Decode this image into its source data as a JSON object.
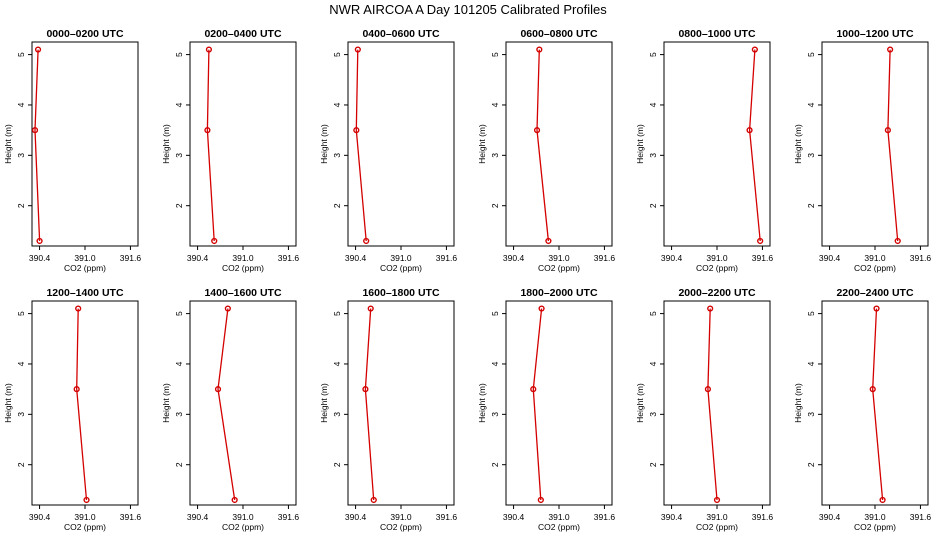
{
  "figure": {
    "title": "NWR AIRCOA A  Day 101205  Calibrated Profiles"
  },
  "colors": {
    "line": "#d40000",
    "marker": "#d40000",
    "frame": "#000000"
  },
  "chart_data": [
    {
      "type": "line",
      "title": "0000–0200 UTC",
      "xlabel": "CO2 (ppm)",
      "ylabel": "Height (m)",
      "xlim": [
        390.3,
        391.7
      ],
      "ylim": [
        1.2,
        5.25
      ],
      "xticks": [
        390.4,
        391.0,
        391.6
      ],
      "xtick_labels": [
        "390.4",
        "391.0",
        "391.6"
      ],
      "yticks": [
        2,
        3,
        4,
        5
      ],
      "ytick_labels": [
        "2",
        "3",
        "4",
        "5"
      ],
      "series": [
        {
          "x": [
            390.38,
            390.34,
            390.4
          ],
          "y": [
            5.1,
            3.5,
            1.3
          ]
        }
      ]
    },
    {
      "type": "line",
      "title": "0200–0400 UTC",
      "xlabel": "CO2 (ppm)",
      "ylabel": "Height (m)",
      "xlim": [
        390.3,
        391.7
      ],
      "ylim": [
        1.2,
        5.25
      ],
      "xticks": [
        390.4,
        391.0,
        391.6
      ],
      "xtick_labels": [
        "390.4",
        "391.0",
        "391.6"
      ],
      "yticks": [
        2,
        3,
        4,
        5
      ],
      "ytick_labels": [
        "2",
        "3",
        "4",
        "5"
      ],
      "series": [
        {
          "x": [
            390.55,
            390.53,
            390.62
          ],
          "y": [
            5.1,
            3.5,
            1.3
          ]
        }
      ]
    },
    {
      "type": "line",
      "title": "0400–0600 UTC",
      "xlabel": "CO2 (ppm)",
      "ylabel": "Height (m)",
      "xlim": [
        390.3,
        391.7
      ],
      "ylim": [
        1.2,
        5.25
      ],
      "xticks": [
        390.4,
        391.0,
        391.6
      ],
      "xtick_labels": [
        "390.4",
        "391.0",
        "391.6"
      ],
      "yticks": [
        2,
        3,
        4,
        5
      ],
      "ytick_labels": [
        "2",
        "3",
        "4",
        "5"
      ],
      "series": [
        {
          "x": [
            390.43,
            390.41,
            390.54
          ],
          "y": [
            5.1,
            3.5,
            1.3
          ]
        }
      ]
    },
    {
      "type": "line",
      "title": "0600–0800 UTC",
      "xlabel": "CO2 (ppm)",
      "ylabel": "Height (m)",
      "xlim": [
        390.3,
        391.7
      ],
      "ylim": [
        1.2,
        5.25
      ],
      "xticks": [
        390.4,
        391.0,
        391.6
      ],
      "xtick_labels": [
        "390.4",
        "391.0",
        "391.6"
      ],
      "yticks": [
        2,
        3,
        4,
        5
      ],
      "ytick_labels": [
        "2",
        "3",
        "4",
        "5"
      ],
      "series": [
        {
          "x": [
            390.74,
            390.71,
            390.86
          ],
          "y": [
            5.1,
            3.5,
            1.3
          ]
        }
      ]
    },
    {
      "type": "line",
      "title": "0800–1000 UTC",
      "xlabel": "CO2 (ppm)",
      "ylabel": "Height (m)",
      "xlim": [
        390.3,
        391.7
      ],
      "ylim": [
        1.2,
        5.25
      ],
      "xticks": [
        390.4,
        391.0,
        391.6
      ],
      "xtick_labels": [
        "390.4",
        "391.0",
        "391.6"
      ],
      "yticks": [
        2,
        3,
        4,
        5
      ],
      "ytick_labels": [
        "2",
        "3",
        "4",
        "5"
      ],
      "series": [
        {
          "x": [
            391.5,
            391.43,
            391.57
          ],
          "y": [
            5.1,
            3.5,
            1.3
          ]
        }
      ]
    },
    {
      "type": "line",
      "title": "1000–1200 UTC",
      "xlabel": "CO2 (ppm)",
      "ylabel": "Height (m)",
      "xlim": [
        390.3,
        391.7
      ],
      "ylim": [
        1.2,
        5.25
      ],
      "xticks": [
        390.4,
        391.0,
        391.6
      ],
      "xtick_labels": [
        "390.4",
        "391.0",
        "391.6"
      ],
      "yticks": [
        2,
        3,
        4,
        5
      ],
      "ytick_labels": [
        "2",
        "3",
        "4",
        "5"
      ],
      "series": [
        {
          "x": [
            391.2,
            391.17,
            391.3
          ],
          "y": [
            5.1,
            3.5,
            1.3
          ]
        }
      ]
    },
    {
      "type": "line",
      "title": "1200–1400 UTC",
      "xlabel": "CO2 (ppm)",
      "ylabel": "Height (m)",
      "xlim": [
        390.3,
        391.7
      ],
      "ylim": [
        1.2,
        5.25
      ],
      "xticks": [
        390.4,
        391.0,
        391.6
      ],
      "xtick_labels": [
        "390.4",
        "391.0",
        "391.6"
      ],
      "yticks": [
        2,
        3,
        4,
        5
      ],
      "ytick_labels": [
        "2",
        "3",
        "4",
        "5"
      ],
      "series": [
        {
          "x": [
            390.91,
            390.89,
            391.02
          ],
          "y": [
            5.1,
            3.5,
            1.3
          ]
        }
      ]
    },
    {
      "type": "line",
      "title": "1400–1600 UTC",
      "xlabel": "CO2 (ppm)",
      "ylabel": "Height (m)",
      "xlim": [
        390.3,
        391.7
      ],
      "ylim": [
        1.2,
        5.25
      ],
      "xticks": [
        390.4,
        391.0,
        391.6
      ],
      "xtick_labels": [
        "390.4",
        "391.0",
        "391.6"
      ],
      "yticks": [
        2,
        3,
        4,
        5
      ],
      "ytick_labels": [
        "2",
        "3",
        "4",
        "5"
      ],
      "series": [
        {
          "x": [
            390.8,
            390.67,
            390.89
          ],
          "y": [
            5.1,
            3.5,
            1.3
          ]
        }
      ]
    },
    {
      "type": "line",
      "title": "1600–1800 UTC",
      "xlabel": "CO2 (ppm)",
      "ylabel": "Height (m)",
      "xlim": [
        390.3,
        391.7
      ],
      "ylim": [
        1.2,
        5.25
      ],
      "xticks": [
        390.4,
        391.0,
        391.6
      ],
      "xtick_labels": [
        "390.4",
        "391.0",
        "391.6"
      ],
      "yticks": [
        2,
        3,
        4,
        5
      ],
      "ytick_labels": [
        "2",
        "3",
        "4",
        "5"
      ],
      "series": [
        {
          "x": [
            390.6,
            390.53,
            390.64
          ],
          "y": [
            5.1,
            3.5,
            1.3
          ]
        }
      ]
    },
    {
      "type": "line",
      "title": "1800–2000 UTC",
      "xlabel": "CO2 (ppm)",
      "ylabel": "Height (m)",
      "xlim": [
        390.3,
        391.7
      ],
      "ylim": [
        1.2,
        5.25
      ],
      "xticks": [
        390.4,
        391.0,
        391.6
      ],
      "xtick_labels": [
        "390.4",
        "391.0",
        "391.6"
      ],
      "yticks": [
        2,
        3,
        4,
        5
      ],
      "ytick_labels": [
        "2",
        "3",
        "4",
        "5"
      ],
      "series": [
        {
          "x": [
            390.77,
            390.66,
            390.76
          ],
          "y": [
            5.1,
            3.5,
            1.3
          ]
        }
      ]
    },
    {
      "type": "line",
      "title": "2000–2200 UTC",
      "xlabel": "CO2 (ppm)",
      "ylabel": "Height (m)",
      "xlim": [
        390.3,
        391.7
      ],
      "ylim": [
        1.2,
        5.25
      ],
      "xticks": [
        390.4,
        391.0,
        391.6
      ],
      "xtick_labels": [
        "390.4",
        "391.0",
        "391.6"
      ],
      "yticks": [
        2,
        3,
        4,
        5
      ],
      "ytick_labels": [
        "2",
        "3",
        "4",
        "5"
      ],
      "series": [
        {
          "x": [
            390.91,
            390.88,
            391.0
          ],
          "y": [
            5.1,
            3.5,
            1.3
          ]
        }
      ]
    },
    {
      "type": "line",
      "title": "2200–2400 UTC",
      "xlabel": "CO2 (ppm)",
      "ylabel": "Height (m)",
      "xlim": [
        390.3,
        391.7
      ],
      "ylim": [
        1.2,
        5.25
      ],
      "xticks": [
        390.4,
        391.0,
        391.6
      ],
      "xtick_labels": [
        "390.4",
        "391.0",
        "391.6"
      ],
      "yticks": [
        2,
        3,
        4,
        5
      ],
      "ytick_labels": [
        "2",
        "3",
        "4",
        "5"
      ],
      "series": [
        {
          "x": [
            391.02,
            390.97,
            391.1
          ],
          "y": [
            5.1,
            3.5,
            1.3
          ]
        }
      ]
    }
  ]
}
